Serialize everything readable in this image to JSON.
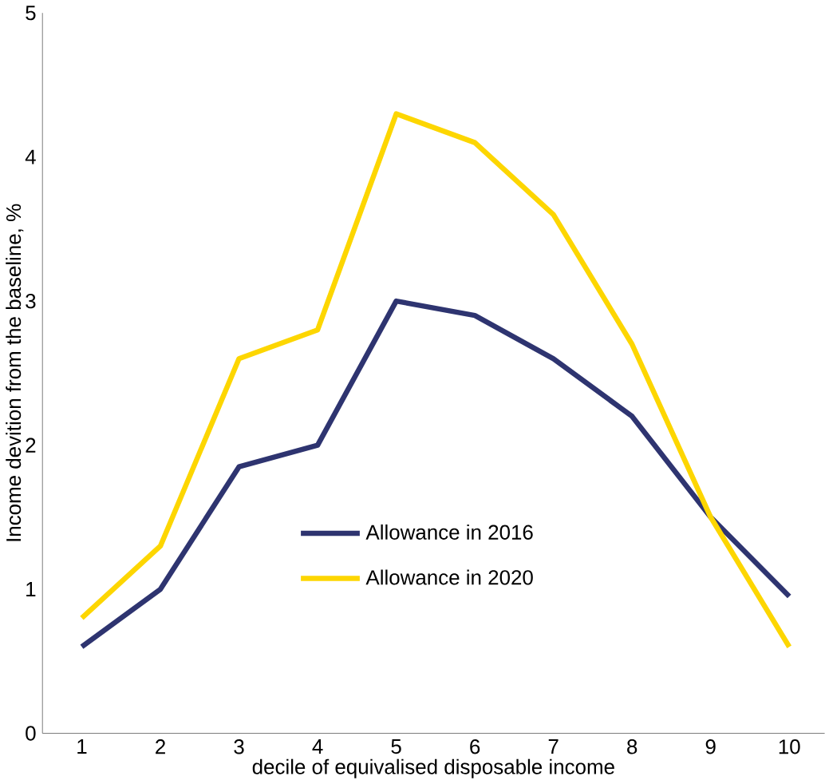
{
  "chart_data": {
    "type": "line",
    "xlabel": "decile of equivalised disposable income",
    "ylabel": "Income devition from the baseline, %",
    "categories": [
      "1",
      "2",
      "3",
      "4",
      "5",
      "6",
      "7",
      "8",
      "9",
      "10"
    ],
    "series": [
      {
        "name": "Allowance in 2016",
        "color": "#2e3470",
        "values": [
          0.6,
          1.0,
          1.85,
          2.0,
          3.0,
          2.9,
          2.6,
          2.2,
          1.5,
          0.95
        ]
      },
      {
        "name": "Allowance in 2020",
        "color": "#fdd600",
        "values": [
          0.8,
          1.3,
          2.6,
          2.8,
          4.3,
          4.1,
          3.6,
          2.7,
          1.5,
          0.6
        ]
      }
    ],
    "ylim": [
      0,
      5
    ],
    "yticks": [
      0,
      1,
      2,
      3,
      4,
      5
    ],
    "legend": "bottom",
    "marker": "none",
    "line_style": "solid",
    "grid": false
  }
}
